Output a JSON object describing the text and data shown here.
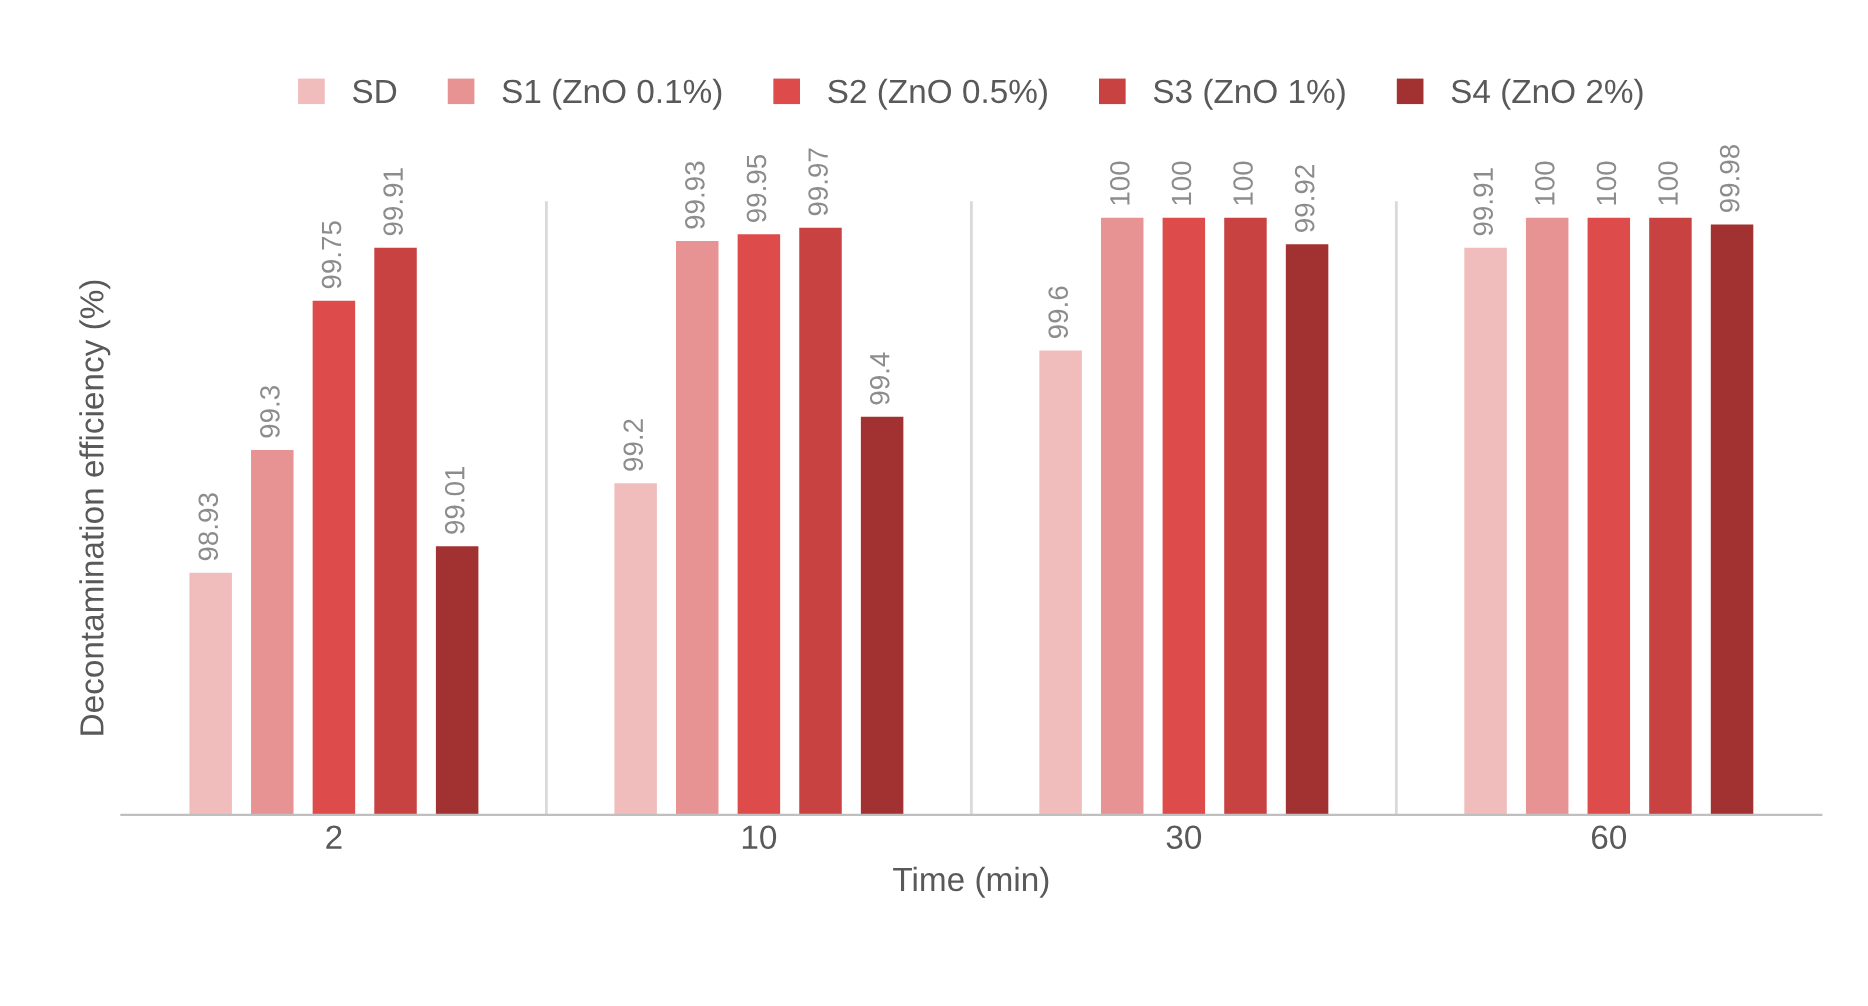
{
  "chart_data": {
    "type": "bar",
    "xlabel": "Time (min)",
    "ylabel": "Decontamination efficiency (%)",
    "categories": [
      "2",
      "10",
      "30",
      "60"
    ],
    "series": [
      {
        "name": "SD",
        "color": "#f0bcbc",
        "values": [
          98.93,
          99.2,
          99.6,
          99.91
        ]
      },
      {
        "name": "S1 (ZnO 0.1%)",
        "color": "#e89393",
        "values": [
          99.3,
          99.93,
          100,
          100
        ]
      },
      {
        "name": "S2 (ZnO 0.5%)",
        "color": "#de4b4b",
        "values": [
          99.75,
          99.95,
          100,
          100
        ]
      },
      {
        "name": "S3 (ZnO 1%)",
        "color": "#c94242",
        "values": [
          99.91,
          99.97,
          100,
          100
        ]
      },
      {
        "name": "S4 (ZnO 2%)",
        "color": "#a23232",
        "values": [
          99.01,
          99.4,
          99.92,
          99.98
        ]
      }
    ],
    "ylim": [
      98.2,
      100.05
    ],
    "tick_labels": "x",
    "data_labels": true,
    "legend": "top",
    "grid": false
  }
}
